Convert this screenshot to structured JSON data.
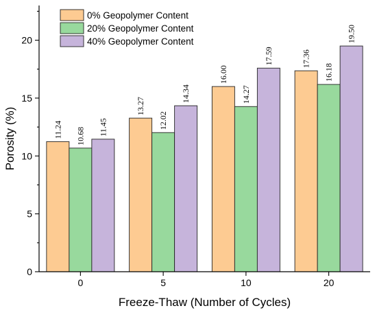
{
  "chart_data": {
    "type": "bar",
    "title": "",
    "xlabel": "Freeze-Thaw (Number of Cycles)",
    "ylabel": "Porosity (%)",
    "categories": [
      "0",
      "5",
      "10",
      "20"
    ],
    "ylim": [
      0,
      23
    ],
    "yticks": [
      "0",
      "5",
      "10",
      "15",
      "20"
    ],
    "ytick_values": [
      0,
      5,
      10,
      15,
      20
    ],
    "grid": false,
    "legend_position": "top-left",
    "series": [
      {
        "name": "0% Geopolymer Content",
        "color": "#FDCB92",
        "values": [
          11.24,
          13.27,
          16.0,
          17.36
        ],
        "labels": [
          "11.24",
          "13.27",
          "16.00",
          "17.36"
        ]
      },
      {
        "name": "20% Geopolymer Content",
        "color": "#98D99D",
        "values": [
          10.68,
          12.02,
          14.27,
          16.18
        ],
        "labels": [
          "10.68",
          "12.02",
          "14.27",
          "16.18"
        ]
      },
      {
        "name": "40% Geopolymer Content",
        "color": "#C6B4DB",
        "values": [
          11.45,
          14.34,
          17.59,
          19.5
        ],
        "labels": [
          "11.45",
          "14.34",
          "17.59",
          "19.50"
        ]
      }
    ]
  }
}
